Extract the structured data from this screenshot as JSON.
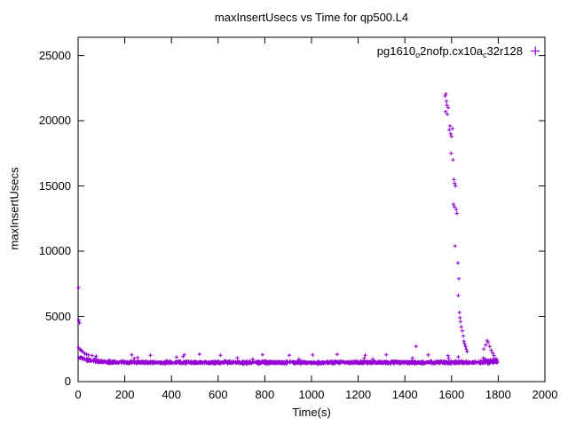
{
  "legend": {
    "part1": "pg1610",
    "sub1": "o",
    "part2": "2nofp.cx10a",
    "sub2": "c",
    "part3": "32r128"
  },
  "chart_data": {
    "type": "scatter",
    "title": "maxInsertUsecs vs Time for qp500.L4",
    "xlabel": "Time(s)",
    "ylabel": "maxInsertUsecs",
    "xlim": [
      0,
      2000
    ],
    "ylim": [
      0,
      26400
    ],
    "xticks": [
      0,
      200,
      400,
      600,
      800,
      1000,
      1200,
      1400,
      1600,
      1800,
      2000
    ],
    "yticks": [
      0,
      5000,
      10000,
      15000,
      20000,
      25000
    ],
    "grid": false,
    "legend_position": "top-right",
    "marker": "plus",
    "color": "#9400d3",
    "series": [
      {
        "name": "pg1610_o2nofp.cx10a_c32r128",
        "seed": 1234,
        "band": {
          "x_start": 0,
          "x_end": 1800,
          "n": 1350,
          "y_base": 1470,
          "y_noise": 130,
          "start_boost": 420,
          "start_decay": 55,
          "outlier_rate": 0.015,
          "outlier_extra": 550,
          "tail_start": 1680,
          "tail_rate": 0.22,
          "tail_extra": 330,
          "y_min": 1250
        },
        "outlier_points": [
          [
            2,
            7200
          ],
          [
            3,
            4700
          ],
          [
            6,
            4500
          ],
          [
            2,
            2600
          ],
          [
            8,
            2500
          ],
          [
            12,
            2400
          ],
          [
            16,
            2350
          ],
          [
            22,
            2250
          ],
          [
            28,
            2150
          ],
          [
            36,
            2100
          ],
          [
            45,
            2050
          ],
          [
            60,
            2000
          ],
          [
            78,
            1950
          ],
          [
            230,
            2050
          ],
          [
            310,
            2020
          ],
          [
            455,
            2060
          ],
          [
            520,
            2100
          ],
          [
            610,
            2030
          ],
          [
            790,
            2060
          ],
          [
            905,
            2020
          ],
          [
            1005,
            2050
          ],
          [
            1110,
            2090
          ],
          [
            1230,
            2030
          ],
          [
            1320,
            2060
          ],
          [
            1448,
            2700
          ],
          [
            1500,
            2050
          ],
          [
            1572,
            21900
          ],
          [
            1576,
            22050
          ],
          [
            1578,
            21500
          ],
          [
            1580,
            21200
          ],
          [
            1574,
            20700
          ],
          [
            1582,
            20500
          ],
          [
            1586,
            21000
          ],
          [
            1590,
            19300
          ],
          [
            1593,
            19600
          ],
          [
            1596,
            19000
          ],
          [
            1600,
            18800
          ],
          [
            1604,
            19400
          ],
          [
            1598,
            17500
          ],
          [
            1606,
            17000
          ],
          [
            1610,
            15500
          ],
          [
            1613,
            15200
          ],
          [
            1617,
            15000
          ],
          [
            1608,
            13600
          ],
          [
            1612,
            13400
          ],
          [
            1620,
            13200
          ],
          [
            1623,
            12900
          ],
          [
            1615,
            10400
          ],
          [
            1627,
            9100
          ],
          [
            1631,
            7900
          ],
          [
            1629,
            6600
          ],
          [
            1634,
            5300
          ],
          [
            1636,
            4900
          ],
          [
            1638,
            4600
          ],
          [
            1642,
            4200
          ],
          [
            1646,
            3900
          ],
          [
            1650,
            3500
          ],
          [
            1653,
            3100
          ],
          [
            1656,
            2900
          ],
          [
            1660,
            2700
          ],
          [
            1663,
            2500
          ],
          [
            1667,
            2300
          ],
          [
            1738,
            2500
          ],
          [
            1746,
            2800
          ],
          [
            1752,
            3150
          ],
          [
            1757,
            3000
          ],
          [
            1763,
            2700
          ],
          [
            1770,
            2400
          ],
          [
            1776,
            2200
          ],
          [
            1782,
            2000
          ]
        ]
      }
    ]
  }
}
